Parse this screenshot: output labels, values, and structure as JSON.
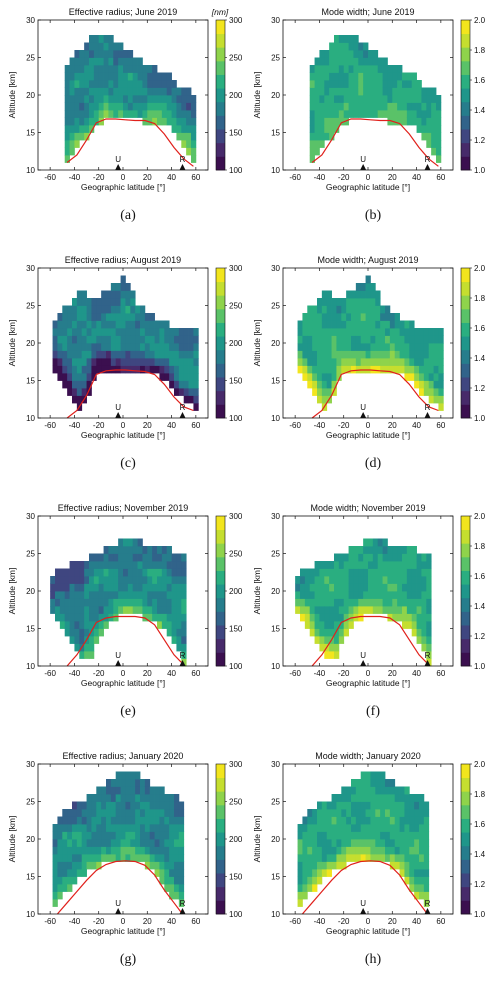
{
  "colors": {
    "scale": [
      "#3b0f4f",
      "#472a6a",
      "#3f4680",
      "#31638a",
      "#267d8c",
      "#1f968a",
      "#2aae80",
      "#5ac268",
      "#8fd34b",
      "#c5de2f",
      "#f2e51d"
    ],
    "curve": "#e0201b"
  },
  "shared_labels": {
    "xlabel": "Geographic latitude [°]",
    "ylabel": "Altitude [km]",
    "units_nm": "[nm]",
    "station_u": "U",
    "station_r": "R"
  },
  "chart_data": [
    {
      "id": "a",
      "type": "heatmap",
      "title": "Effective radius; June 2019",
      "quantity": "radius",
      "caption": "(a)",
      "xlim": [
        -70,
        70
      ],
      "ylim": [
        10,
        30
      ],
      "xticks": [
        "-60",
        "-40",
        "-20",
        "0",
        "20",
        "40",
        "60"
      ],
      "yticks": [
        "10",
        "15",
        "20",
        "25",
        "30"
      ],
      "colorbar": {
        "range": [
          100,
          300
        ],
        "ticks": [
          "100",
          "150",
          "200",
          "250",
          "300"
        ],
        "unit": "[nm]"
      },
      "extent": {
        "lat": [
          -48,
          60
        ],
        "lower_alt": [
          11,
          13,
          15,
          16.5,
          16.8,
          16.7,
          16.5,
          16.3,
          15.5,
          13.5,
          11
        ],
        "upper_alt": [
          24,
          26,
          27.5,
          28.5,
          27,
          25.5,
          24.5,
          23.5,
          22.5,
          21,
          20
        ]
      },
      "tropopause": {
        "lat": [
          -46,
          -38,
          -30,
          -22,
          -14,
          -6,
          2,
          10,
          18,
          26,
          34,
          42,
          50,
          58
        ],
        "alt": [
          11,
          12,
          14,
          16.3,
          16.8,
          16.8,
          16.7,
          16.6,
          16.6,
          16.2,
          14.8,
          13,
          11.5,
          10.5
        ]
      },
      "stations": [
        {
          "label": "U",
          "lat": -4
        },
        {
          "label": "R",
          "lat": 49
        }
      ]
    },
    {
      "id": "b",
      "type": "heatmap",
      "title": "Mode width; June 2019",
      "quantity": "width",
      "caption": "(b)",
      "xlim": [
        -70,
        70
      ],
      "ylim": [
        10,
        30
      ],
      "xticks": [
        "-60",
        "-40",
        "-20",
        "0",
        "20",
        "40",
        "60"
      ],
      "yticks": [
        "10",
        "15",
        "20",
        "25",
        "30"
      ],
      "colorbar": {
        "range": [
          1.0,
          2.0
        ],
        "ticks": [
          "1.0",
          "1.2",
          "1.4",
          "1.6",
          "1.8",
          "2.0"
        ],
        "unit": ""
      },
      "extent": {
        "lat": [
          -48,
          60
        ],
        "lower_alt": [
          11,
          13,
          15,
          16.5,
          16.8,
          16.7,
          16.5,
          16.3,
          15.5,
          13.5,
          11
        ],
        "upper_alt": [
          24,
          26,
          27.5,
          28.5,
          27,
          25.5,
          24.5,
          23.5,
          22.5,
          21,
          20
        ]
      },
      "tropopause": {
        "lat": [
          -46,
          -38,
          -30,
          -22,
          -14,
          -6,
          2,
          10,
          18,
          26,
          34,
          42,
          50,
          58
        ],
        "alt": [
          11,
          12,
          14,
          16.3,
          16.8,
          16.8,
          16.7,
          16.6,
          16.6,
          16.2,
          14.8,
          13,
          11.5,
          10.5
        ]
      },
      "stations": [
        {
          "label": "U",
          "lat": -4
        },
        {
          "label": "R",
          "lat": 49
        }
      ]
    },
    {
      "id": "c",
      "type": "heatmap",
      "title": "Effective radius; August 2019",
      "quantity": "radius",
      "caption": "(c)",
      "xlim": [
        -70,
        70
      ],
      "ylim": [
        10,
        30
      ],
      "xticks": [
        "-60",
        "-40",
        "-20",
        "0",
        "20",
        "40",
        "60"
      ],
      "yticks": [
        "10",
        "15",
        "20",
        "25",
        "30"
      ],
      "colorbar": {
        "range": [
          100,
          300
        ],
        "ticks": [
          "100",
          "150",
          "200",
          "250",
          "300"
        ],
        "unit": ""
      },
      "extent": {
        "lat": [
          -58,
          60
        ],
        "lower_alt": [
          17,
          14,
          10.5,
          16,
          16.5,
          16.5,
          16.3,
          16,
          15,
          12.5,
          11
        ],
        "upper_alt": [
          23,
          25,
          27,
          26,
          27,
          29.5,
          25,
          23.5,
          22.5,
          22,
          22
        ]
      },
      "tropopause": {
        "lat": [
          -46,
          -38,
          -30,
          -22,
          -14,
          -6,
          2,
          10,
          18,
          26,
          34,
          42,
          50,
          58
        ],
        "alt": [
          10,
          11,
          13,
          15.8,
          16.3,
          16.4,
          16.4,
          16.3,
          16.2,
          15.8,
          14.5,
          12.8,
          11.5,
          11
        ]
      },
      "stations": [
        {
          "label": "U",
          "lat": -4
        },
        {
          "label": "R",
          "lat": 49
        }
      ]
    },
    {
      "id": "d",
      "type": "heatmap",
      "title": "Mode width; August 2019",
      "quantity": "width",
      "caption": "(d)",
      "xlim": [
        -70,
        70
      ],
      "ylim": [
        10,
        30
      ],
      "xticks": [
        "-60",
        "-40",
        "-20",
        "0",
        "20",
        "40",
        "60"
      ],
      "yticks": [
        "10",
        "15",
        "20",
        "25",
        "30"
      ],
      "colorbar": {
        "range": [
          1.0,
          2.0
        ],
        "ticks": [
          "1.0",
          "1.2",
          "1.4",
          "1.6",
          "1.8",
          "2.0"
        ],
        "unit": ""
      },
      "extent": {
        "lat": [
          -58,
          60
        ],
        "lower_alt": [
          17,
          14,
          10.5,
          16,
          16.5,
          16.5,
          16.3,
          16,
          15,
          12.5,
          11
        ],
        "upper_alt": [
          23,
          25,
          27,
          26,
          27,
          29.5,
          25,
          23.5,
          22.5,
          22,
          22
        ]
      },
      "tropopause": {
        "lat": [
          -46,
          -38,
          -30,
          -22,
          -14,
          -6,
          2,
          10,
          18,
          26,
          34,
          42,
          50,
          58
        ],
        "alt": [
          10,
          11,
          13,
          15.8,
          16.3,
          16.4,
          16.4,
          16.3,
          16.2,
          15.8,
          14.5,
          12.8,
          11.5,
          11
        ]
      },
      "stations": [
        {
          "label": "U",
          "lat": -4
        },
        {
          "label": "R",
          "lat": 49
        }
      ]
    },
    {
      "id": "e",
      "type": "heatmap",
      "title": "Effective radius; November 2019",
      "quantity": "radius",
      "caption": "(e)",
      "xlim": [
        -70,
        70
      ],
      "ylim": [
        10,
        30
      ],
      "xticks": [
        "-60",
        "-40",
        "-20",
        "0",
        "20",
        "40",
        "60"
      ],
      "yticks": [
        "10",
        "15",
        "20",
        "25",
        "30"
      ],
      "colorbar": {
        "range": [
          100,
          300
        ],
        "ticks": [
          "100",
          "150",
          "200",
          "250",
          "300"
        ],
        "unit": ""
      },
      "extent": {
        "lat": [
          -60,
          50
        ],
        "lower_alt": [
          17,
          15,
          12,
          10.5,
          15,
          16.5,
          16.7,
          16.5,
          15.8,
          13.5,
          10.5
        ],
        "upper_alt": [
          22,
          23,
          24,
          24.5,
          25.5,
          26.5,
          27,
          26.5,
          26,
          25.5,
          25
        ]
      },
      "tropopause": {
        "lat": [
          -46,
          -38,
          -30,
          -22,
          -14,
          -6,
          2,
          10,
          18,
          26,
          34,
          42,
          48
        ],
        "alt": [
          10,
          11.5,
          13.5,
          15.8,
          16.4,
          16.6,
          16.6,
          16.6,
          16.4,
          15.5,
          13.5,
          11.5,
          10.5
        ]
      },
      "stations": [
        {
          "label": "U",
          "lat": -4
        },
        {
          "label": "R",
          "lat": 49
        }
      ]
    },
    {
      "id": "f",
      "type": "heatmap",
      "title": "Mode width; November 2019",
      "quantity": "width",
      "caption": "(f)",
      "xlim": [
        -70,
        70
      ],
      "ylim": [
        10,
        30
      ],
      "xticks": [
        "-60",
        "-40",
        "-20",
        "0",
        "20",
        "40",
        "60"
      ],
      "yticks": [
        "10",
        "15",
        "20",
        "25",
        "30"
      ],
      "colorbar": {
        "range": [
          1.0,
          2.0
        ],
        "ticks": [
          "1.0",
          "1.2",
          "1.4",
          "1.6",
          "1.8",
          "2.0"
        ],
        "unit": ""
      },
      "extent": {
        "lat": [
          -60,
          50
        ],
        "lower_alt": [
          17,
          15,
          12,
          10.5,
          15,
          16.5,
          16.7,
          16.5,
          15.8,
          13.5,
          10.5
        ],
        "upper_alt": [
          22,
          23,
          24,
          24.5,
          25.5,
          26.5,
          27,
          26.5,
          26,
          25.5,
          25
        ]
      },
      "tropopause": {
        "lat": [
          -46,
          -38,
          -30,
          -22,
          -14,
          -6,
          2,
          10,
          18,
          26,
          34,
          42,
          48
        ],
        "alt": [
          10,
          11.5,
          13.5,
          15.8,
          16.4,
          16.6,
          16.6,
          16.6,
          16.4,
          15.5,
          13.5,
          11.5,
          10.5
        ]
      },
      "stations": [
        {
          "label": "U",
          "lat": -4
        },
        {
          "label": "R",
          "lat": 49
        }
      ]
    },
    {
      "id": "g",
      "type": "heatmap",
      "title": "Effective radius; January 2020",
      "quantity": "radius",
      "caption": "(g)",
      "xlim": [
        -70,
        70
      ],
      "ylim": [
        10,
        30
      ],
      "xticks": [
        "-60",
        "-40",
        "-20",
        "0",
        "20",
        "40",
        "60"
      ],
      "yticks": [
        "10",
        "15",
        "20",
        "25",
        "30"
      ],
      "colorbar": {
        "range": [
          100,
          300
        ],
        "ticks": [
          "100",
          "150",
          "200",
          "250",
          "300"
        ],
        "unit": ""
      },
      "extent": {
        "lat": [
          -58,
          50
        ],
        "lower_alt": [
          11,
          13,
          14.5,
          16,
          16.8,
          17,
          17,
          16.5,
          15,
          12.5,
          10.5
        ],
        "upper_alt": [
          22,
          24,
          25,
          26,
          27.5,
          29,
          29,
          28,
          27,
          26,
          25
        ]
      },
      "tropopause": {
        "lat": [
          -54,
          -46,
          -38,
          -30,
          -22,
          -14,
          -6,
          2,
          10,
          18,
          26,
          34,
          42,
          48
        ],
        "alt": [
          10,
          11.5,
          13,
          14.5,
          15.8,
          16.6,
          17,
          17.1,
          17,
          16.5,
          15.2,
          13.2,
          11.5,
          10.2
        ]
      },
      "stations": [
        {
          "label": "U",
          "lat": -4
        },
        {
          "label": "R",
          "lat": 49
        }
      ]
    },
    {
      "id": "h",
      "type": "heatmap",
      "title": "Mode width; January 2020",
      "quantity": "width",
      "caption": "(h)",
      "xlim": [
        -70,
        70
      ],
      "ylim": [
        10,
        30
      ],
      "xticks": [
        "-60",
        "-40",
        "-20",
        "0",
        "20",
        "40",
        "60"
      ],
      "yticks": [
        "10",
        "15",
        "20",
        "25",
        "30"
      ],
      "colorbar": {
        "range": [
          1.0,
          2.0
        ],
        "ticks": [
          "1.0",
          "1.2",
          "1.4",
          "1.6",
          "1.8",
          "2.0"
        ],
        "unit": ""
      },
      "extent": {
        "lat": [
          -58,
          50
        ],
        "lower_alt": [
          11,
          13,
          14.5,
          16,
          16.8,
          17,
          17,
          16.5,
          15,
          12.5,
          10.5
        ],
        "upper_alt": [
          22,
          24,
          25,
          26,
          27.5,
          29,
          29,
          28,
          27,
          26,
          25
        ]
      },
      "tropopause": {
        "lat": [
          -54,
          -46,
          -38,
          -30,
          -22,
          -14,
          -6,
          2,
          10,
          18,
          26,
          34,
          42,
          48
        ],
        "alt": [
          10,
          11.5,
          13,
          14.5,
          15.8,
          16.6,
          17,
          17.1,
          17,
          16.5,
          15.2,
          13.2,
          11.5,
          10.2
        ]
      },
      "stations": [
        {
          "label": "U",
          "lat": -4
        },
        {
          "label": "R",
          "lat": 49
        }
      ]
    }
  ]
}
